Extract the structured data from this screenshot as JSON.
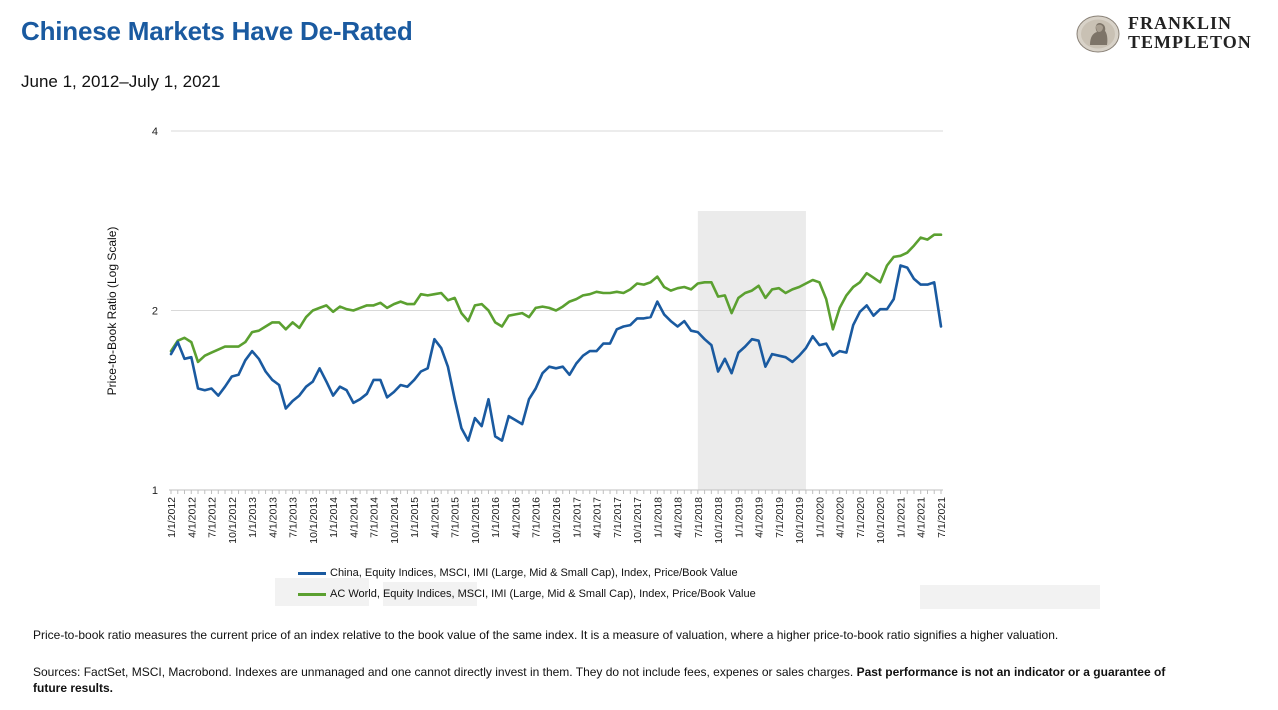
{
  "header": {
    "title": "Chinese Markets Have De-Rated",
    "subtitle": "June 1, 2012–July 1, 2021",
    "logo_line1": "FRANKLIN",
    "logo_line2": "TEMPLETON"
  },
  "chart_data": {
    "type": "line",
    "ylabel": "Price-to-Book Ratio (Log Scale)",
    "xlabel": "",
    "y_scale": "log",
    "ylim": [
      1,
      4
    ],
    "y_ticks": [
      1,
      2,
      4
    ],
    "grid": true,
    "legend_position": "bottom",
    "shaded_region": [
      "7/1/2018",
      "11/1/2019"
    ],
    "x": [
      "1/1/2012",
      "2/1/2012",
      "3/1/2012",
      "4/1/2012",
      "5/1/2012",
      "6/1/2012",
      "7/1/2012",
      "8/1/2012",
      "9/1/2012",
      "10/1/2012",
      "11/1/2012",
      "12/1/2012",
      "1/1/2013",
      "2/1/2013",
      "3/1/2013",
      "4/1/2013",
      "5/1/2013",
      "6/1/2013",
      "7/1/2013",
      "8/1/2013",
      "9/1/2013",
      "10/1/2013",
      "11/1/2013",
      "12/1/2013",
      "1/1/2014",
      "2/1/2014",
      "3/1/2014",
      "4/1/2014",
      "5/1/2014",
      "6/1/2014",
      "7/1/2014",
      "8/1/2014",
      "9/1/2014",
      "10/1/2014",
      "11/1/2014",
      "12/1/2014",
      "1/1/2015",
      "2/1/2015",
      "3/1/2015",
      "4/1/2015",
      "5/1/2015",
      "6/1/2015",
      "7/1/2015",
      "8/1/2015",
      "9/1/2015",
      "10/1/2015",
      "11/1/2015",
      "12/1/2015",
      "1/1/2016",
      "2/1/2016",
      "3/1/2016",
      "4/1/2016",
      "5/1/2016",
      "6/1/2016",
      "7/1/2016",
      "8/1/2016",
      "9/1/2016",
      "10/1/2016",
      "11/1/2016",
      "12/1/2016",
      "1/1/2017",
      "2/1/2017",
      "3/1/2017",
      "4/1/2017",
      "5/1/2017",
      "6/1/2017",
      "7/1/2017",
      "8/1/2017",
      "9/1/2017",
      "10/1/2017",
      "11/1/2017",
      "12/1/2017",
      "1/1/2018",
      "2/1/2018",
      "3/1/2018",
      "4/1/2018",
      "5/1/2018",
      "6/1/2018",
      "7/1/2018",
      "8/1/2018",
      "9/1/2018",
      "10/1/2018",
      "11/1/2018",
      "12/1/2018",
      "1/1/2019",
      "2/1/2019",
      "3/1/2019",
      "4/1/2019",
      "5/1/2019",
      "6/1/2019",
      "7/1/2019",
      "8/1/2019",
      "9/1/2019",
      "10/1/2019",
      "11/1/2019",
      "12/1/2019",
      "1/1/2020",
      "2/1/2020",
      "3/1/2020",
      "4/1/2020",
      "5/1/2020",
      "6/1/2020",
      "7/1/2020",
      "8/1/2020",
      "9/1/2020",
      "10/1/2020",
      "11/1/2020",
      "12/1/2020",
      "1/1/2021",
      "2/1/2021",
      "3/1/2021",
      "4/1/2021",
      "5/1/2021",
      "6/1/2021",
      "7/1/2021"
    ],
    "x_tick_labels": [
      "1/1/2012",
      "4/1/2012",
      "7/1/2012",
      "10/1/2012",
      "1/1/2013",
      "4/1/2013",
      "7/1/2013",
      "10/1/2013",
      "1/1/2014",
      "4/1/2014",
      "7/1/2014",
      "10/1/2014",
      "1/1/2015",
      "4/1/2015",
      "7/1/2015",
      "10/1/2015",
      "1/1/2016",
      "4/1/2016",
      "7/1/2016",
      "10/1/2016",
      "1/1/2017",
      "4/1/2017",
      "7/1/2017",
      "10/1/2017",
      "1/1/2018",
      "4/1/2018",
      "7/1/2018",
      "10/1/2018",
      "1/1/2019",
      "4/1/2019",
      "7/1/2019",
      "10/1/2019",
      "1/1/2020",
      "4/1/2020",
      "7/1/2020",
      "10/1/2020",
      "1/1/2021",
      "4/1/2021",
      "7/1/2021"
    ],
    "series": [
      {
        "name": "China, Equity Indices, MSCI, IMI (Large, Mid & Small Cap), Index, Price/Book Value",
        "color": "#1a5aa0",
        "values": [
          1.69,
          1.77,
          1.66,
          1.67,
          1.48,
          1.47,
          1.48,
          1.44,
          1.49,
          1.55,
          1.56,
          1.65,
          1.71,
          1.66,
          1.58,
          1.53,
          1.5,
          1.37,
          1.41,
          1.44,
          1.49,
          1.52,
          1.6,
          1.52,
          1.44,
          1.49,
          1.47,
          1.4,
          1.42,
          1.45,
          1.53,
          1.53,
          1.43,
          1.46,
          1.5,
          1.49,
          1.53,
          1.58,
          1.6,
          1.79,
          1.73,
          1.61,
          1.42,
          1.27,
          1.21,
          1.32,
          1.28,
          1.42,
          1.23,
          1.21,
          1.33,
          1.31,
          1.29,
          1.42,
          1.48,
          1.57,
          1.61,
          1.6,
          1.61,
          1.56,
          1.63,
          1.68,
          1.71,
          1.71,
          1.76,
          1.76,
          1.86,
          1.88,
          1.89,
          1.94,
          1.94,
          1.95,
          2.07,
          1.97,
          1.92,
          1.88,
          1.92,
          1.85,
          1.84,
          1.79,
          1.75,
          1.58,
          1.66,
          1.57,
          1.7,
          1.74,
          1.79,
          1.78,
          1.61,
          1.69,
          1.68,
          1.67,
          1.64,
          1.68,
          1.73,
          1.81,
          1.75,
          1.76,
          1.68,
          1.71,
          1.7,
          1.89,
          1.99,
          2.04,
          1.96,
          2.01,
          2.01,
          2.09,
          2.38,
          2.36,
          2.26,
          2.21,
          2.21,
          2.23,
          1.88
        ]
      },
      {
        "name": "AC World, Equity Indices, MSCI, IMI (Large, Mid & Small Cap), Index, Price/Book Value",
        "color": "#5ba030",
        "values": [
          1.71,
          1.78,
          1.8,
          1.77,
          1.64,
          1.68,
          1.7,
          1.72,
          1.74,
          1.74,
          1.74,
          1.77,
          1.84,
          1.85,
          1.88,
          1.91,
          1.91,
          1.86,
          1.91,
          1.87,
          1.95,
          2.0,
          2.02,
          2.04,
          1.99,
          2.03,
          2.01,
          2.0,
          2.02,
          2.04,
          2.04,
          2.06,
          2.02,
          2.05,
          2.07,
          2.05,
          2.05,
          2.13,
          2.12,
          2.13,
          2.14,
          2.08,
          2.1,
          1.98,
          1.92,
          2.04,
          2.05,
          2.0,
          1.91,
          1.88,
          1.96,
          1.97,
          1.98,
          1.95,
          2.02,
          2.03,
          2.02,
          2.0,
          2.03,
          2.07,
          2.09,
          2.12,
          2.13,
          2.15,
          2.14,
          2.14,
          2.15,
          2.14,
          2.17,
          2.22,
          2.21,
          2.23,
          2.28,
          2.19,
          2.16,
          2.18,
          2.19,
          2.17,
          2.22,
          2.23,
          2.23,
          2.11,
          2.12,
          1.98,
          2.1,
          2.14,
          2.16,
          2.2,
          2.1,
          2.17,
          2.18,
          2.14,
          2.17,
          2.19,
          2.22,
          2.25,
          2.23,
          2.09,
          1.86,
          2.02,
          2.12,
          2.19,
          2.23,
          2.31,
          2.27,
          2.23,
          2.38,
          2.46,
          2.47,
          2.5,
          2.57,
          2.65,
          2.63,
          2.68,
          2.68
        ]
      }
    ]
  },
  "notes": {
    "definition": "Price-to-book ratio measures the current price of an index relative to the book value of the same index. It is a measure of valuation, where a higher price-to-book ratio signifies a higher valuation.",
    "sources_text": "Sources: FactSet, MSCI, Macrobond. Indexes are unmanaged and one cannot directly invest in them. They do not include fees, expenes or sales charges. ",
    "sources_bold": "Past performance is not an indicator or a guarantee of future results."
  },
  "colors": {
    "title": "#1a5aa0",
    "china_line": "#1a5aa0",
    "world_line": "#5ba030",
    "shade": "#ebebeb"
  }
}
